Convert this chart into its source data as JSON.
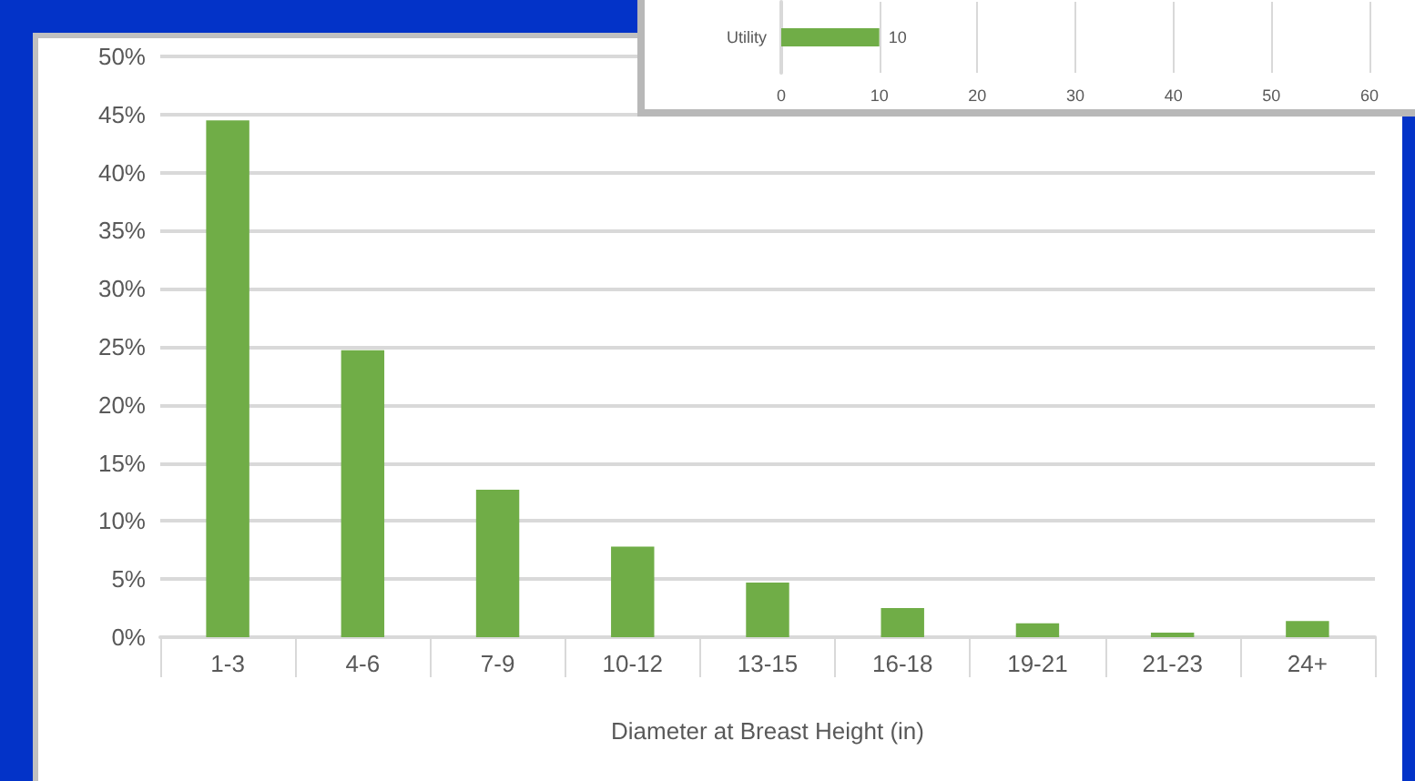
{
  "chart_data": [
    {
      "type": "bar",
      "xlabel": "Diameter at Breast Height (in)",
      "categories": [
        "1-3",
        "4-6",
        "7-9",
        "10-12",
        "13-15",
        "16-18",
        "19-21",
        "21-23",
        "24+"
      ],
      "values": [
        44.5,
        24.7,
        12.7,
        7.8,
        4.7,
        2.5,
        1.2,
        0.4,
        1.4
      ],
      "color": "#70ad47",
      "ylim": [
        0,
        50
      ],
      "yticks": [
        {
          "value": 0,
          "label": "0%"
        },
        {
          "value": 5,
          "label": "5%"
        },
        {
          "value": 10,
          "label": "10%"
        },
        {
          "value": 15,
          "label": "15%"
        },
        {
          "value": 20,
          "label": "20%"
        },
        {
          "value": 25,
          "label": "25%"
        },
        {
          "value": 30,
          "label": "30%"
        },
        {
          "value": 35,
          "label": "35%"
        },
        {
          "value": 40,
          "label": "40%"
        },
        {
          "value": 45,
          "label": "45%"
        },
        {
          "value": 50,
          "label": "50%"
        }
      ],
      "grid": true
    },
    {
      "type": "bar",
      "orientation": "horizontal",
      "categories": [
        "Utility"
      ],
      "values": [
        10
      ],
      "color": "#70ad47",
      "data_labels": true,
      "xlim": [
        0,
        60
      ],
      "xticks": [
        0,
        10,
        20,
        30,
        40,
        50,
        60
      ],
      "grid": "x"
    }
  ]
}
